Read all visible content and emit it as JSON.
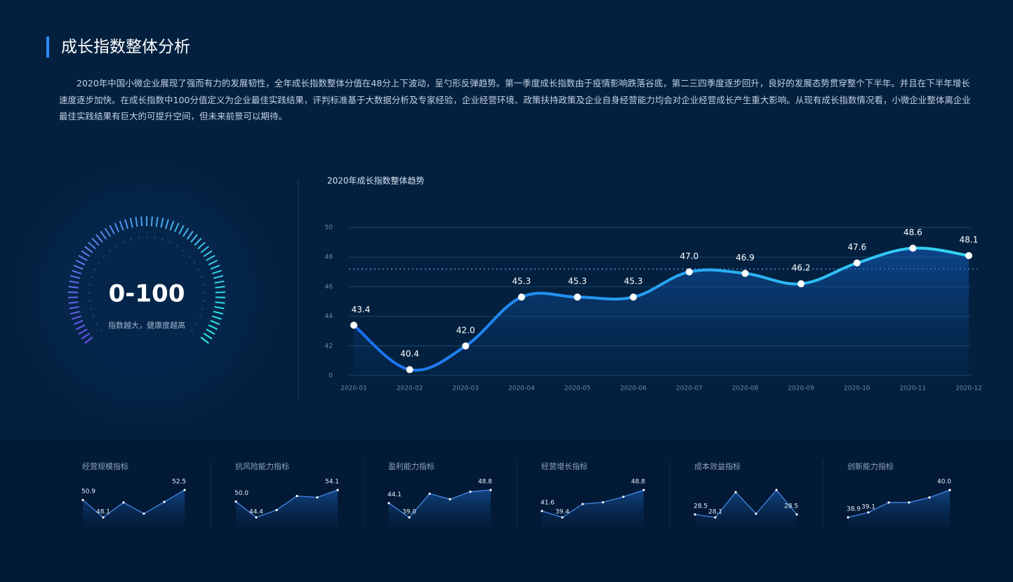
{
  "header": {
    "title": "成长指数整体分析",
    "paragraph": "2020年中国小微企业展现了强而有力的发展韧性，全年成长指数整体分值在48分上下波动，呈勺形反弹趋势。第一季度成长指数由于疫情影响跌落谷底，第二三四季度逐步回升，良好的发展态势贯穿整个下半年。并且在下半年增长速度逐步加快。在成长指数中100分值定义为企业最佳实践结果，评判标准基于大数据分析及专家经验，企业经营环境、政策扶持政策及企业自身经营能力均会对企业经营成长产生重大影响。从现有成长指数情况看，小微企业整体离企业最佳实践结果有巨大的可提升空间，但未来前景可以期待。"
  },
  "gauge": {
    "range": "0-100",
    "caption": "指数越大，健康度越高"
  },
  "chart_data": [
    {
      "type": "line",
      "title": "2020年成长指数整体趋势",
      "categories": [
        "2020-01",
        "2020-02",
        "2020-03",
        "2020-04",
        "2020-05",
        "2020-06",
        "2020-07",
        "2020-08",
        "2020-09",
        "2020-10",
        "2020-11",
        "2020-12"
      ],
      "values": [
        43.4,
        40.4,
        42.0,
        45.3,
        45.3,
        45.3,
        47.0,
        46.9,
        46.2,
        47.6,
        48.6,
        48.1
      ],
      "value_labels": [
        "43.4",
        "40.4",
        "42.0",
        "45.3",
        "45.3",
        "45.3",
        "47.0",
        "46.9",
        "46.2",
        "47.6",
        "48.6",
        "48.1"
      ],
      "color": [
        "#1a6ff0",
        "#35d6f5"
      ],
      "reference_line": 47.2,
      "ylim": [
        40,
        50
      ],
      "yticks": [
        {
          "value": 40,
          "label": "0"
        },
        42,
        44,
        46,
        48,
        50
      ],
      "grid": true
    },
    {
      "type": "line",
      "title": "经营规模指标",
      "values": [
        50.9,
        48.1,
        50.5,
        48.7,
        50.6,
        52.5
      ],
      "value_labels": [
        "50.9",
        "48.1",
        null,
        null,
        null,
        "52.5"
      ],
      "color": "#4a8ff0"
    },
    {
      "type": "line",
      "title": "抗风险能力指标",
      "values": [
        50.0,
        44.4,
        47.0,
        52.0,
        51.5,
        54.1
      ],
      "value_labels": [
        "50.0",
        "44.4",
        null,
        null,
        null,
        "54.1"
      ],
      "color": "#4a8ff0"
    },
    {
      "type": "line",
      "title": "盈利能力指标",
      "values": [
        44.1,
        39.0,
        47.5,
        45.5,
        48.2,
        48.8
      ],
      "value_labels": [
        "44.1",
        "39.0",
        null,
        null,
        null,
        "48.8"
      ],
      "color": "#4a8ff0"
    },
    {
      "type": "line",
      "title": "经营增长指标",
      "values": [
        41.6,
        39.4,
        44.0,
        44.6,
        46.5,
        48.8
      ],
      "value_labels": [
        "41.6",
        "39.4",
        null,
        null,
        null,
        "48.8"
      ],
      "color": "#4a8ff0"
    },
    {
      "type": "line",
      "title": "成本效益指标",
      "values": [
        28.5,
        28.1,
        31.5,
        28.6,
        31.8,
        28.5
      ],
      "value_labels": [
        "28.5",
        "28.1",
        null,
        null,
        null,
        "28.5"
      ],
      "color": "#4a8ff0"
    },
    {
      "type": "line",
      "title": "创新能力指标",
      "values": [
        38.9,
        39.1,
        39.5,
        39.5,
        39.7,
        40.0
      ],
      "value_labels": [
        "38.9",
        "39.1",
        null,
        null,
        null,
        "40.0"
      ],
      "color": "#4a8ff0"
    }
  ]
}
